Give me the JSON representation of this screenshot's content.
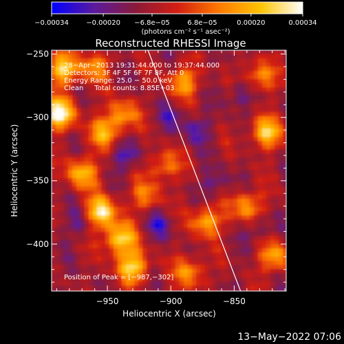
{
  "chart_data": {
    "type": "heatmap",
    "title": "Reconstructed RHESSI Image",
    "xlabel": "Heliocentric X (arcsec)",
    "ylabel": "Heliocentric Y (arcsec)",
    "xlim": [
      -994,
      -809
    ],
    "ylim": [
      -437,
      -247
    ],
    "x_ticks": [
      {
        "value": -950,
        "label": "−950"
      },
      {
        "value": -900,
        "label": "−900"
      },
      {
        "value": -850,
        "label": "−850"
      }
    ],
    "y_ticks": [
      {
        "value": -250,
        "label": "−250"
      },
      {
        "value": -300,
        "label": "−300"
      },
      {
        "value": -350,
        "label": "−350"
      },
      {
        "value": -400,
        "label": "−400"
      }
    ],
    "colorbar": {
      "range": [
        -0.00034,
        0.00034
      ],
      "tick_values": [
        -0.00034,
        -0.0002,
        -6.8e-05,
        6.8e-05,
        0.0002,
        0.00034
      ],
      "tick_labels": [
        "−0.00034",
        "−0.00020",
        "−6.8e−05",
        "6.8e−05",
        "0.00020",
        "0.00034"
      ],
      "unit_label": "(photons cm⁻² s⁻¹ asec⁻²)",
      "colors": [
        "#0000ff",
        "#5a1aa0",
        "#8a1a3a",
        "#d21e12",
        "#ff7a00",
        "#ffc400",
        "#ffffff"
      ]
    },
    "annotations": {
      "time_range": "28−Apr−2013 19:31:44.000 to 19:37:44.000",
      "detectors": "Detectors: 3F 4F 5F 6F 7F 8F, Att 0",
      "energy_range": "Energy Range: 25.0 − 50.0 keV",
      "clean_counts": "Clean     Total counts: 8.85E+03",
      "peak": "Position of Peak = [−987,−302]"
    },
    "peak_position": [
      -987,
      -302
    ],
    "limb_line": [
      [
        -918,
        -247
      ],
      [
        -845,
        -437
      ]
    ],
    "hot_regions": [
      {
        "x": -988,
        "y": -297,
        "intensity": 1.0
      },
      {
        "x": -985,
        "y": -262,
        "intensity": 0.8
      },
      {
        "x": -955,
        "y": -375,
        "intensity": 0.9
      },
      {
        "x": -940,
        "y": -396,
        "intensity": 0.85
      },
      {
        "x": -930,
        "y": -418,
        "intensity": 0.8
      },
      {
        "x": -970,
        "y": -344,
        "intensity": 0.7
      },
      {
        "x": -952,
        "y": -312,
        "intensity": 0.6
      },
      {
        "x": -938,
        "y": -298,
        "intensity": 0.55
      },
      {
        "x": -890,
        "y": -272,
        "intensity": 0.6
      },
      {
        "x": -885,
        "y": -422,
        "intensity": 0.55
      },
      {
        "x": -872,
        "y": -382,
        "intensity": 0.65
      },
      {
        "x": -840,
        "y": -370,
        "intensity": 0.6
      },
      {
        "x": -825,
        "y": -312,
        "intensity": 0.75
      },
      {
        "x": -818,
        "y": -410,
        "intensity": 0.6
      },
      {
        "x": -830,
        "y": -268,
        "intensity": 0.55
      },
      {
        "x": -905,
        "y": -338,
        "intensity": 0.5
      },
      {
        "x": -960,
        "y": -260,
        "intensity": 0.5
      },
      {
        "x": -920,
        "y": -362,
        "intensity": 0.45
      }
    ],
    "cold_regions": [
      {
        "x": -935,
        "y": -330,
        "intensity": 0.7
      },
      {
        "x": -910,
        "y": -385,
        "intensity": 0.6
      },
      {
        "x": -880,
        "y": -310,
        "intensity": 0.6
      },
      {
        "x": -845,
        "y": -282,
        "intensity": 0.55
      },
      {
        "x": -865,
        "y": -352,
        "intensity": 0.5
      },
      {
        "x": -972,
        "y": -383,
        "intensity": 0.5
      },
      {
        "x": -830,
        "y": -388,
        "intensity": 0.45
      },
      {
        "x": -900,
        "y": -300,
        "intensity": 0.45
      }
    ]
  },
  "footer": {
    "date": "13−May−2022 07:06"
  }
}
